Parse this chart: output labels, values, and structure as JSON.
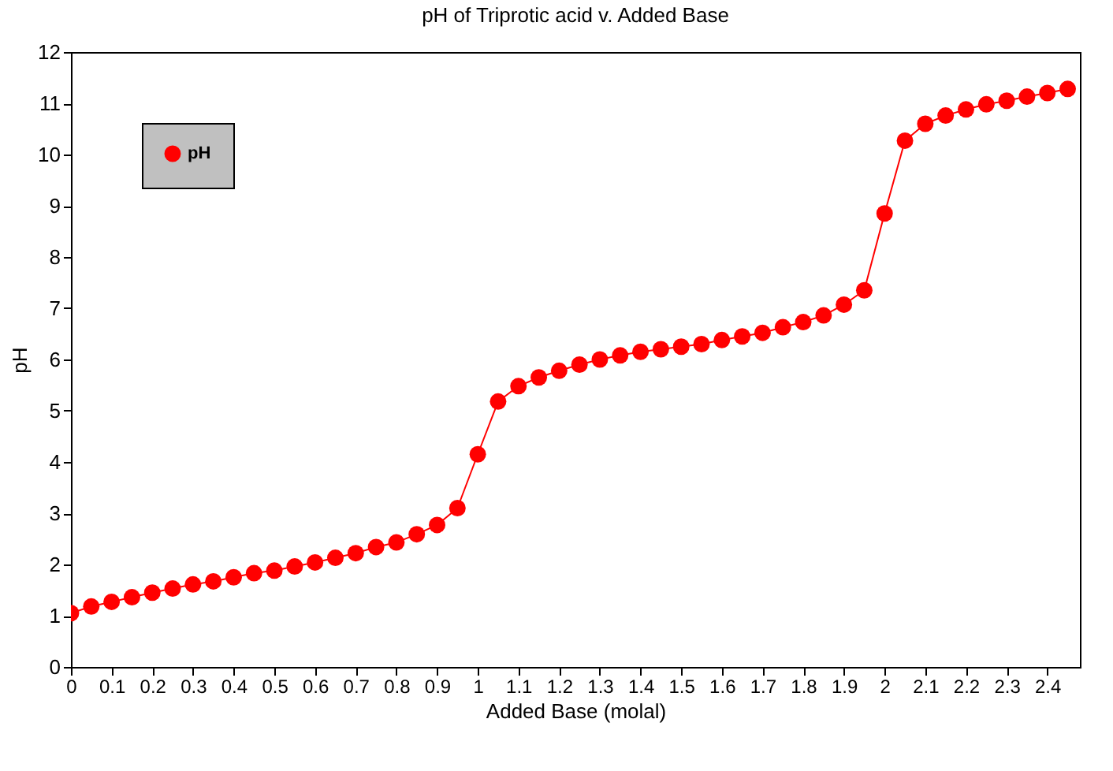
{
  "chart_data": {
    "type": "line",
    "title": "pH of Triprotic acid v. Added Base",
    "xlabel": "Added Base (molal)",
    "ylabel": "pH",
    "x": [
      0,
      0.05,
      0.1,
      0.15,
      0.2,
      0.25,
      0.3,
      0.35,
      0.4,
      0.45,
      0.5,
      0.55,
      0.6,
      0.65,
      0.7,
      0.75,
      0.8,
      0.85,
      0.9,
      0.95,
      1.0,
      1.05,
      1.1,
      1.15,
      1.2,
      1.25,
      1.3,
      1.35,
      1.4,
      1.45,
      1.5,
      1.55,
      1.6,
      1.65,
      1.7,
      1.75,
      1.8,
      1.85,
      1.9,
      1.95,
      2.0,
      2.05,
      2.1,
      2.15,
      2.2,
      2.25,
      2.3,
      2.35,
      2.4,
      2.45
    ],
    "series": [
      {
        "name": "pH",
        "color": "#ff0000",
        "values": [
          1.05,
          1.18,
          1.27,
          1.36,
          1.45,
          1.53,
          1.61,
          1.67,
          1.75,
          1.83,
          1.88,
          1.96,
          2.04,
          2.13,
          2.22,
          2.34,
          2.43,
          2.59,
          2.77,
          3.1,
          4.15,
          5.18,
          5.48,
          5.65,
          5.78,
          5.9,
          6.0,
          6.08,
          6.15,
          6.2,
          6.25,
          6.3,
          6.38,
          6.45,
          6.52,
          6.63,
          6.73,
          6.86,
          7.07,
          7.35,
          8.85,
          10.27,
          10.6,
          10.76,
          10.88,
          10.98,
          11.05,
          11.13,
          11.2,
          11.28
        ]
      }
    ],
    "xlim": [
      0,
      2.48
    ],
    "xticks": [
      0,
      0.1,
      0.2,
      0.3,
      0.4,
      0.5,
      0.6,
      0.7,
      0.8,
      0.9,
      1,
      1.1,
      1.2,
      1.3,
      1.4,
      1.5,
      1.6,
      1.7,
      1.8,
      1.9,
      2,
      2.1,
      2.2,
      2.3,
      2.4
    ],
    "ylim": [
      0,
      12
    ],
    "yticks": [
      0,
      1,
      2,
      3,
      4,
      5,
      6,
      7,
      8,
      9,
      10,
      11,
      12
    ],
    "legend": "top left",
    "marker": "circle",
    "line_style": "solid",
    "grid": false
  }
}
